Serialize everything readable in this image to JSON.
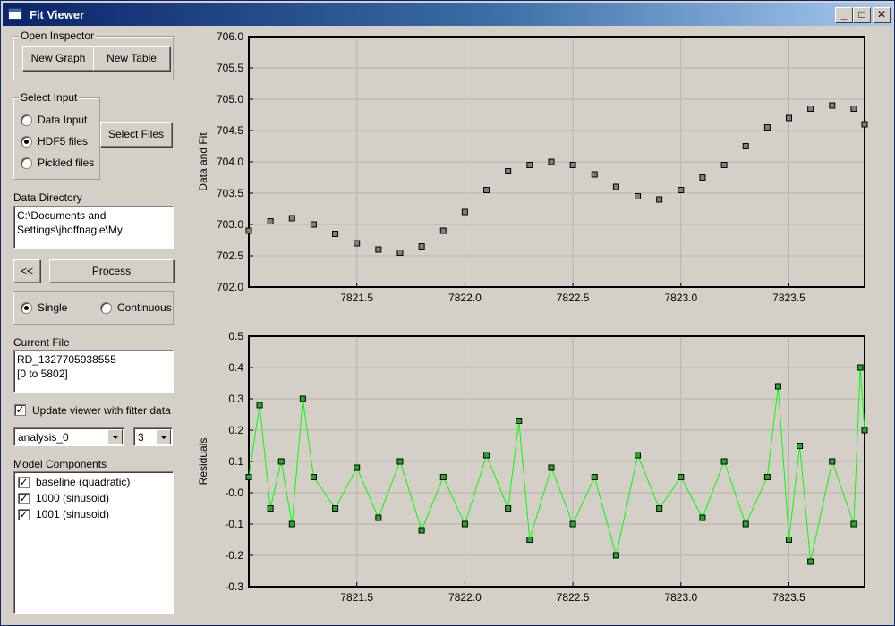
{
  "window": {
    "title": "Fit Viewer",
    "minimize_glyph": "_",
    "maximize_glyph": "□",
    "close_glyph": "✕"
  },
  "open_inspector": {
    "legend": "Open Inspector",
    "new_graph": "New Graph",
    "new_table": "New Table"
  },
  "select_input": {
    "legend": "Select Input",
    "options": [
      {
        "label": "Data Input",
        "checked": false
      },
      {
        "label": "HDF5 files",
        "checked": true
      },
      {
        "label": "Pickled files",
        "checked": false
      }
    ],
    "select_files": "Select Files"
  },
  "data_directory": {
    "label": "Data Directory",
    "line1": "C:\\Documents and",
    "line2": "Settings\\jhoffnagle\\My"
  },
  "back_button": "<<",
  "process_button": "Process",
  "mode": {
    "single": "Single",
    "continuous": "Continuous",
    "selected": "Single"
  },
  "current_file": {
    "label": "Current File",
    "line1": "RD_1327705938555",
    "line2": "[0 to 5802]"
  },
  "update_viewer": {
    "label": "Update viewer with fitter data",
    "checked": true
  },
  "analysis_select": "analysis_0",
  "number_select": "3",
  "model_components": {
    "label": "Model Components",
    "items": [
      {
        "label": "baseline (quadratic)",
        "checked": true
      },
      {
        "label": "1000 (sinusoid)",
        "checked": true
      },
      {
        "label": "1001 (sinusoid)",
        "checked": true
      }
    ]
  },
  "colors": {
    "titlebar_start": "#0a246a",
    "residual_line": "#00ff00",
    "residual_marker": "#22aa22",
    "data_marker": "#808080"
  },
  "chart_data": [
    {
      "type": "scatter",
      "ylabel": "Data and Fit",
      "xlim": [
        7821.0,
        7823.85
      ],
      "ylim": [
        702.0,
        706.0
      ],
      "x_ticks": [
        "7821.5",
        "7822.0",
        "7822.5",
        "7823.0",
        "7823.5"
      ],
      "y_ticks": [
        "702.0",
        "702.5",
        "703.0",
        "703.5",
        "704.0",
        "704.5",
        "705.0",
        "705.5",
        "706.0"
      ],
      "grid": true,
      "series": [
        {
          "x": [
            7821.0,
            7821.1,
            7821.2,
            7821.3,
            7821.4,
            7821.5,
            7821.6,
            7821.7,
            7821.8,
            7821.9,
            7822.0,
            7822.1,
            7822.2,
            7822.3,
            7822.4,
            7822.5,
            7822.6,
            7822.7,
            7822.8,
            7822.9,
            7823.0,
            7823.1,
            7823.2,
            7823.3,
            7823.4,
            7823.5,
            7823.6,
            7823.7,
            7823.8,
            7823.85
          ],
          "y": [
            702.9,
            703.05,
            703.1,
            703.0,
            702.85,
            702.7,
            702.6,
            702.55,
            702.65,
            702.9,
            703.2,
            703.55,
            703.85,
            703.95,
            704.0,
            703.95,
            703.8,
            703.6,
            703.45,
            703.4,
            703.55,
            703.75,
            703.95,
            704.25,
            704.55,
            704.7,
            704.85,
            704.9,
            704.85,
            704.6
          ]
        }
      ]
    },
    {
      "type": "scatter",
      "ylabel": "Residuals",
      "xlim": [
        7821.0,
        7823.85
      ],
      "ylim": [
        -0.3,
        0.5
      ],
      "x_ticks": [
        "7821.5",
        "7822.0",
        "7822.5",
        "7823.0",
        "7823.5"
      ],
      "y_ticks": [
        "-0.3",
        "-0.2",
        "-0.1",
        "-0.0",
        "0.1",
        "0.2",
        "0.3",
        "0.4",
        "0.5"
      ],
      "grid": true,
      "series": [
        {
          "x": [
            7821.0,
            7821.05,
            7821.1,
            7821.15,
            7821.2,
            7821.25,
            7821.3,
            7821.4,
            7821.5,
            7821.6,
            7821.7,
            7821.8,
            7821.9,
            7822.0,
            7822.1,
            7822.2,
            7822.25,
            7822.3,
            7822.4,
            7822.5,
            7822.6,
            7822.7,
            7822.8,
            7822.9,
            7823.0,
            7823.1,
            7823.2,
            7823.3,
            7823.4,
            7823.45,
            7823.5,
            7823.55,
            7823.6,
            7823.7,
            7823.8,
            7823.83,
            7823.85
          ],
          "y": [
            0.05,
            0.28,
            -0.05,
            0.1,
            -0.1,
            0.3,
            0.05,
            -0.05,
            0.08,
            -0.08,
            0.1,
            -0.12,
            0.05,
            -0.1,
            0.12,
            -0.05,
            0.23,
            -0.15,
            0.08,
            -0.1,
            0.05,
            -0.2,
            0.12,
            -0.05,
            0.05,
            -0.08,
            0.1,
            -0.1,
            0.05,
            0.34,
            -0.15,
            0.15,
            -0.22,
            0.1,
            -0.1,
            0.4,
            0.2
          ]
        }
      ]
    }
  ]
}
